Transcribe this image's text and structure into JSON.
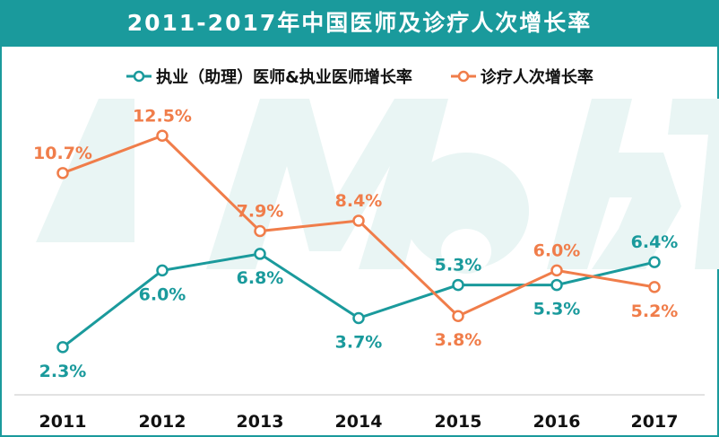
{
  "chart_data": {
    "type": "line",
    "title": "2011-2017年中国医师及诊疗人次增长率",
    "categories": [
      "2011",
      "2012",
      "2013",
      "2014",
      "2015",
      "2016",
      "2017"
    ],
    "series": [
      {
        "name": "执业（助理）医师&执业医师增长率",
        "color": "#1a9a9c",
        "values": [
          2.3,
          6.0,
          6.8,
          3.7,
          5.3,
          5.3,
          6.4
        ],
        "labels": [
          "2.3%",
          "6.0%",
          "6.8%",
          "3.7%",
          "5.3%",
          "5.3%",
          "6.4%"
        ],
        "label_pos": [
          "below",
          "below",
          "below",
          "below",
          "above",
          "below",
          "above"
        ]
      },
      {
        "name": "诊疗人次增长率",
        "color": "#f07d4a",
        "values": [
          10.7,
          12.5,
          7.9,
          8.4,
          3.8,
          6.0,
          5.2
        ],
        "labels": [
          "10.7%",
          "12.5%",
          "7.9%",
          "8.4%",
          "3.8%",
          "6.0%",
          "5.2%"
        ],
        "label_pos": [
          "above",
          "above",
          "above",
          "above",
          "below",
          "above",
          "below"
        ]
      }
    ],
    "ylim": [
      0,
      16
    ],
    "grid": false,
    "legend": "top",
    "watermark": "MobT"
  }
}
